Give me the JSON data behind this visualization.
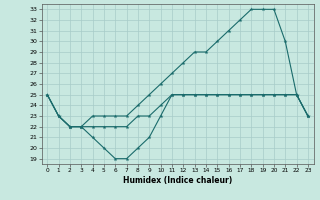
{
  "xlabel": "Humidex (Indice chaleur)",
  "background_color": "#c8e8e0",
  "line_color": "#1a6b6b",
  "xlim": [
    -0.5,
    23.5
  ],
  "ylim": [
    18.5,
    33.5
  ],
  "xticks": [
    0,
    1,
    2,
    3,
    4,
    5,
    6,
    7,
    8,
    9,
    10,
    11,
    12,
    13,
    14,
    15,
    16,
    17,
    18,
    19,
    20,
    21,
    22,
    23
  ],
  "yticks": [
    19,
    20,
    21,
    22,
    23,
    24,
    25,
    26,
    27,
    28,
    29,
    30,
    31,
    32,
    33
  ],
  "line1_x": [
    0,
    1,
    2,
    3,
    4,
    5,
    6,
    7,
    8,
    9,
    10,
    11,
    12,
    13,
    14,
    15,
    16,
    17,
    18,
    19,
    20,
    21,
    22,
    23
  ],
  "line1_y": [
    25,
    23,
    22,
    22,
    21,
    20,
    19,
    19,
    20,
    21,
    23,
    25,
    25,
    25,
    25,
    25,
    25,
    25,
    25,
    25,
    25,
    25,
    25,
    23
  ],
  "line2_x": [
    0,
    1,
    2,
    3,
    4,
    5,
    6,
    7,
    8,
    9,
    10,
    11,
    12,
    13,
    14,
    15,
    16,
    17,
    18,
    19,
    20,
    21,
    22,
    23
  ],
  "line2_y": [
    25,
    23,
    22,
    22,
    23,
    23,
    23,
    23,
    24,
    25,
    26,
    27,
    28,
    29,
    29,
    30,
    31,
    32,
    33,
    33,
    33,
    30,
    25,
    23
  ],
  "line3_x": [
    0,
    1,
    2,
    3,
    4,
    5,
    6,
    7,
    8,
    9,
    10,
    11,
    12,
    13,
    14,
    15,
    16,
    17,
    18,
    19,
    20,
    21,
    22,
    23
  ],
  "line3_y": [
    25,
    23,
    22,
    22,
    22,
    22,
    22,
    22,
    23,
    23,
    24,
    25,
    25,
    25,
    25,
    25,
    25,
    25,
    25,
    25,
    25,
    25,
    25,
    23
  ]
}
